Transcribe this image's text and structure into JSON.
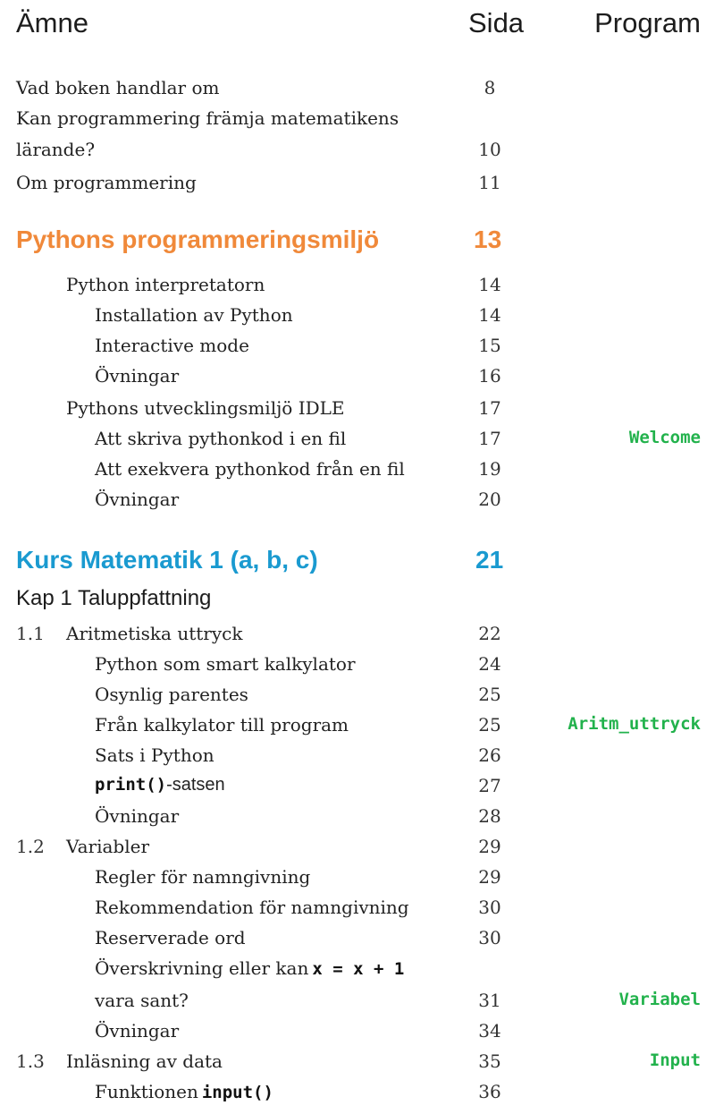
{
  "header": {
    "subject": "Ämne",
    "page": "Sida",
    "program": "Program"
  },
  "intro": [
    {
      "title": "Vad boken handlar om",
      "page": "8"
    },
    {
      "title": "Kan programmering främja matematikens",
      "page": ""
    },
    {
      "title": "lärande?",
      "page": "10"
    },
    {
      "title": "Om programmering",
      "page": "11"
    }
  ],
  "section1": {
    "title": "Pythons programmeringsmiljö",
    "page": "13",
    "color": "#f0893a"
  },
  "s1_rows": [
    {
      "title": "Python interpretatorn",
      "page": "14",
      "program": ""
    },
    {
      "title": "Installation av Python",
      "page": "14",
      "program": ""
    },
    {
      "title": "Interactive mode",
      "page": "15",
      "program": ""
    },
    {
      "title": "Övningar",
      "page": "16",
      "program": ""
    },
    {
      "title": "Pythons utvecklingsmiljö IDLE",
      "page": "17",
      "program": ""
    },
    {
      "title": "Att skriva pythonkod i en fil",
      "page": "17",
      "program": "Welcome"
    },
    {
      "title": "Att exekvera pythonkod från en fil",
      "page": "19",
      "program": ""
    },
    {
      "title": "Övningar",
      "page": "20",
      "program": ""
    }
  ],
  "section2": {
    "title": "Kurs Matematik 1 (a, b, c)",
    "page": "21",
    "color": "#1a9ad0"
  },
  "chapter": "Kap 1 Taluppfattning",
  "s2_rows": [
    {
      "num": "1.1",
      "title": "Aritmetiska uttryck",
      "page": "22",
      "program": ""
    },
    {
      "num": "",
      "title": "Python som smart kalkylator",
      "page": "24",
      "program": ""
    },
    {
      "num": "",
      "title": "Osynlig parentes",
      "page": "25",
      "program": ""
    },
    {
      "num": "",
      "title": "Från kalkylator till program",
      "page": "25",
      "program": "Aritm_uttryck"
    },
    {
      "num": "",
      "title": "Sats i Python",
      "page": "26",
      "program": ""
    },
    {
      "num": "",
      "code": "print()",
      "suffix": "-satsen",
      "page": "27",
      "program": ""
    },
    {
      "num": "",
      "title": "Övningar",
      "page": "28",
      "program": ""
    },
    {
      "num": "1.2",
      "title": "Variabler",
      "page": "29",
      "program": ""
    },
    {
      "num": "",
      "title": "Regler för namngivning",
      "page": "29",
      "program": ""
    },
    {
      "num": "",
      "title": "Rekommendation för namngivning",
      "page": "30",
      "program": ""
    },
    {
      "num": "",
      "title": "Reserverade ord",
      "page": "30",
      "program": ""
    },
    {
      "num": "",
      "title": "Överskrivning eller kan",
      "code": "x = x + 1",
      "page": "",
      "program": ""
    },
    {
      "num": "",
      "title": "vara sant?",
      "page": "31",
      "program": "Variabel"
    },
    {
      "num": "",
      "title": "Övningar",
      "page": "34",
      "program": ""
    },
    {
      "num": "1.3",
      "title": "Inläsning av data",
      "page": "35",
      "program": "Input"
    },
    {
      "num": "",
      "title": "Funktionen",
      "code": "input()",
      "page": "36",
      "program": ""
    }
  ]
}
